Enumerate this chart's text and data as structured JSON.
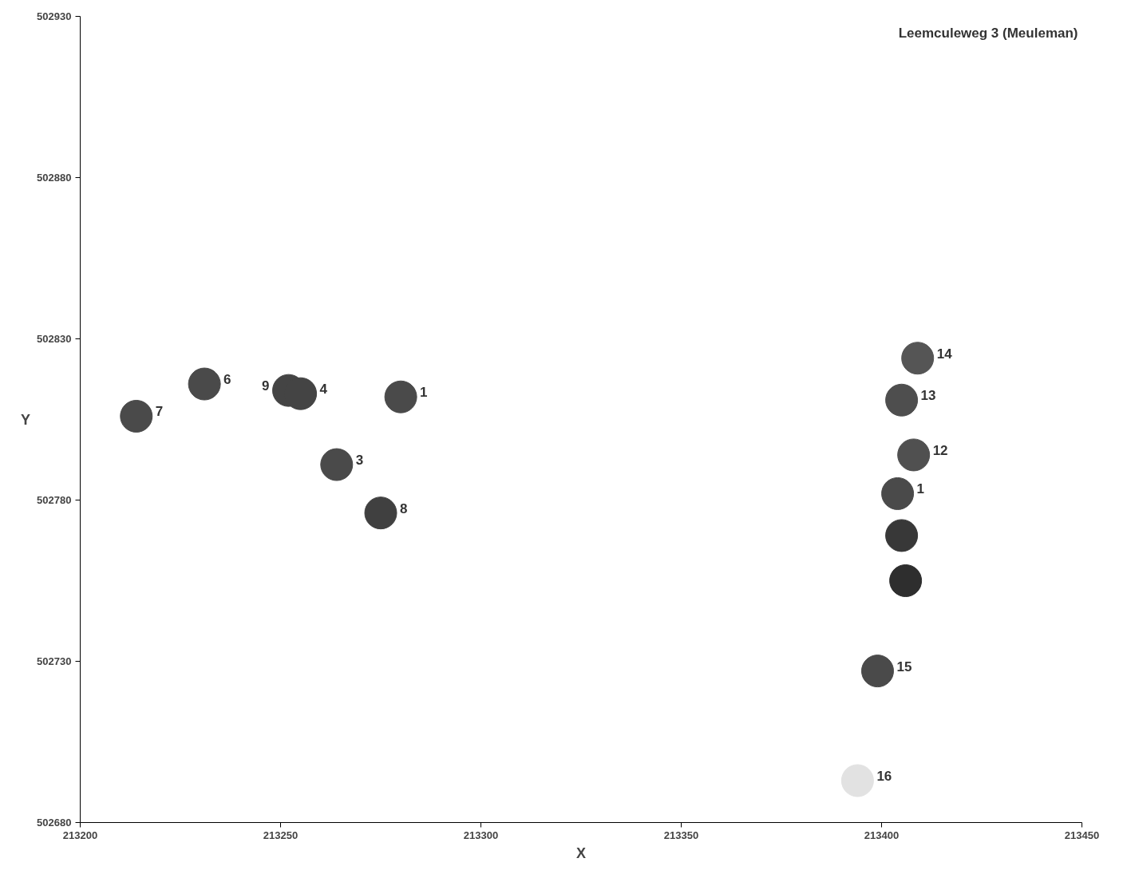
{
  "chart_data": {
    "type": "scatter",
    "title": "Leemculeweg 3 (Meuleman)",
    "xlabel": "X",
    "ylabel": "Y",
    "x": [
      213214,
      213231,
      213252,
      213255,
      213280,
      213264,
      213275,
      213409,
      213405,
      213408,
      213404,
      213405,
      213406,
      213399,
      213394
    ],
    "values": [
      502806,
      502816,
      502814,
      502813,
      502812,
      502791,
      502776,
      502824,
      502811,
      502794,
      502782,
      502769,
      502755,
      502727,
      502693
    ],
    "colors": [
      "#4a4a4a",
      "#4a4a4a",
      "#444444",
      "#444444",
      "#4a4a4a",
      "#4a4a4a",
      "#404040",
      "#555555",
      "#4e4e4e",
      "#505050",
      "#4a4a4a",
      "#383838",
      "#2e2e2e",
      "#4a4a4a",
      "#e2e2e2"
    ],
    "annotations": [
      {
        "text": "7",
        "x": 213214,
        "y": 502806
      },
      {
        "text": "6",
        "x": 213231,
        "y": 502816
      },
      {
        "text": "9",
        "x": 213252,
        "y": 502814
      },
      {
        "text": "4",
        "x": 213255,
        "y": 502813
      },
      {
        "text": "1",
        "x": 213280,
        "y": 502812
      },
      {
        "text": "3",
        "x": 213264,
        "y": 502791
      },
      {
        "text": "8",
        "x": 213275,
        "y": 502776
      },
      {
        "text": "14",
        "x": 213409,
        "y": 502824
      },
      {
        "text": "13",
        "x": 213405,
        "y": 502811
      },
      {
        "text": "12",
        "x": 213408,
        "y": 502794
      },
      {
        "text": "1",
        "x": 213404,
        "y": 502782
      },
      {
        "text": "15",
        "x": 213399,
        "y": 502727
      },
      {
        "text": "16",
        "x": 213394,
        "y": 502693
      }
    ],
    "marker": "circle",
    "xlim": [
      213200,
      213450
    ],
    "xticks": [
      213200,
      213250,
      213300,
      213350,
      213400,
      213450
    ],
    "ylim": [
      502680,
      502930
    ],
    "yticks": [
      502680,
      502730,
      502780,
      502830,
      502880,
      502930
    ],
    "grid": false
  }
}
